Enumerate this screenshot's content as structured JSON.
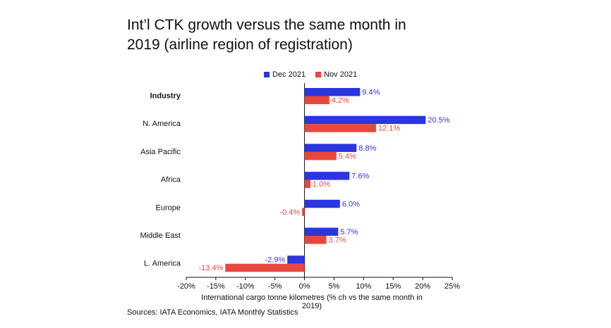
{
  "title_line1": "Int’l CTK growth versus the same month in",
  "title_line2": "2019 (airline region of registration)",
  "source": "Sources: IATA Economics, IATA Monthly Statistics",
  "chart_data": {
    "type": "bar",
    "orientation": "horizontal",
    "title": "Int’l CTK growth versus the same month in 2019 (airline region of registration)",
    "xlabel": "International cargo tonne kilometres (% ch vs the same month in 2019)",
    "ylabel": "",
    "categories": [
      "Industry",
      "N. America",
      "Asia Pacific",
      "Africa",
      "Europe",
      "Middle East",
      "L. America"
    ],
    "bold_categories": [
      "Industry"
    ],
    "series": [
      {
        "name": "Dec 2021",
        "color": "#2b35e0",
        "values": [
          9.4,
          20.5,
          8.8,
          7.6,
          6.0,
          5.7,
          -2.9
        ],
        "labels": [
          "9.4%",
          "20.5%",
          "8.8%",
          "7.6%",
          "6.0%",
          "5.7%",
          "-2.9%"
        ]
      },
      {
        "name": "Nov 2021",
        "color": "#e8473d",
        "values": [
          4.2,
          12.1,
          5.4,
          1.0,
          -0.4,
          3.7,
          -13.4
        ],
        "labels": [
          "4.2%",
          "12.1%",
          "5.4%",
          "1.0%",
          "-0.4%",
          "3.7%",
          "-13.4%"
        ]
      }
    ],
    "xlim": [
      -20,
      25
    ],
    "xticks": [
      -20,
      -15,
      -10,
      -5,
      0,
      5,
      10,
      15,
      20,
      25
    ],
    "xtick_labels": [
      "-20%",
      "-15%",
      "-10%",
      "-5%",
      "0%",
      "5%",
      "10%",
      "15%",
      "20%",
      "25%"
    ],
    "grid": false,
    "legend_position": "top"
  }
}
